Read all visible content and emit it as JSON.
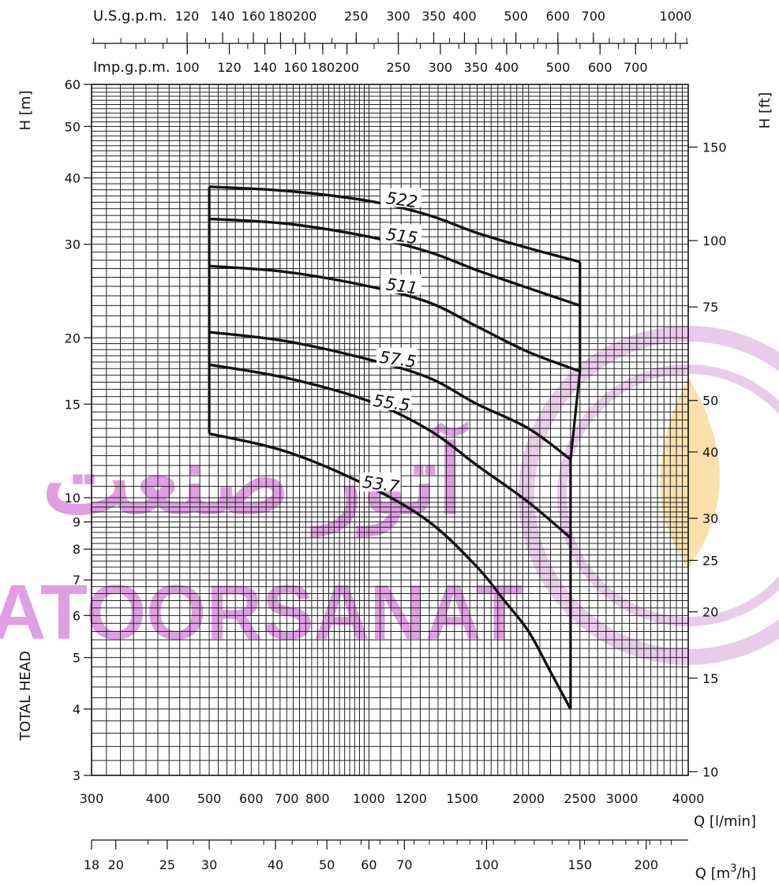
{
  "chart_data": {
    "type": "line",
    "x_scale": "log",
    "y_scale": "log",
    "xlim": [
      300,
      4000
    ],
    "ylim": [
      3,
      60
    ],
    "grid": true,
    "left_axis": {
      "label": "H [m]",
      "ticks": [
        {
          "value": 3,
          "label": "3"
        },
        {
          "value": 4,
          "label": "4"
        },
        {
          "value": 5,
          "label": "5"
        },
        {
          "value": 6,
          "label": "6"
        },
        {
          "value": 7,
          "label": "7"
        },
        {
          "value": 8,
          "label": "8"
        },
        {
          "value": 9,
          "label": "9"
        },
        {
          "value": 10,
          "label": "10"
        },
        {
          "value": 15,
          "label": "15"
        },
        {
          "value": 20,
          "label": "20"
        },
        {
          "value": 30,
          "label": "30"
        },
        {
          "value": 40,
          "label": "40"
        },
        {
          "value": 50,
          "label": "50"
        },
        {
          "value": 60,
          "label": "60"
        }
      ]
    },
    "vertical_label": "TOTAL HEAD",
    "right_axis": {
      "label": "H [ft]",
      "ticks": [
        {
          "value": 10,
          "label": "10"
        },
        {
          "value": 15,
          "label": "15"
        },
        {
          "value": 20,
          "label": "20"
        },
        {
          "value": 25,
          "label": "25"
        },
        {
          "value": 30,
          "label": "30"
        },
        {
          "value": 40,
          "label": "40"
        },
        {
          "value": 50,
          "label": "50"
        },
        {
          "value": 75,
          "label": "75"
        },
        {
          "value": 100,
          "label": "100"
        },
        {
          "value": 150,
          "label": "150"
        }
      ]
    },
    "bottom_axis": {
      "label": "Q [l/min]",
      "ticks": [
        {
          "value": 300,
          "label": "300"
        },
        {
          "value": 400,
          "label": "400"
        },
        {
          "value": 500,
          "label": "500"
        },
        {
          "value": 600,
          "label": "600"
        },
        {
          "value": 700,
          "label": "700"
        },
        {
          "value": 800,
          "label": "800"
        },
        {
          "value": 1000,
          "label": "1000"
        },
        {
          "value": 1200,
          "label": "1200"
        },
        {
          "value": 1500,
          "label": "1500"
        },
        {
          "value": 2000,
          "label": "2000"
        },
        {
          "value": 2500,
          "label": "2500"
        },
        {
          "value": 3000,
          "label": "3000"
        },
        {
          "value": 4000,
          "label": "4000"
        }
      ]
    },
    "m3h_axis": {
      "label_prefix": "Q [m",
      "label_sup": "3",
      "label_suffix": "/h]",
      "ticks": [
        {
          "value": 18,
          "label": "18"
        },
        {
          "value": 20,
          "label": "20"
        },
        {
          "value": 25,
          "label": "25"
        },
        {
          "value": 30,
          "label": "30"
        },
        {
          "value": 40,
          "label": "40"
        },
        {
          "value": 50,
          "label": "50"
        },
        {
          "value": 60,
          "label": "60"
        },
        {
          "value": 70,
          "label": "70"
        },
        {
          "value": 100,
          "label": "100"
        },
        {
          "value": 150,
          "label": "150"
        },
        {
          "value": 200,
          "label": "200"
        }
      ]
    },
    "usgpm_axis": {
      "label": "U.S.g.p.m.",
      "ticks": [
        {
          "value": 120,
          "label": "120"
        },
        {
          "value": 140,
          "label": "140"
        },
        {
          "value": 160,
          "label": "160"
        },
        {
          "value": 180,
          "label": "180"
        },
        {
          "value": 200,
          "label": "200"
        },
        {
          "value": 250,
          "label": "250"
        },
        {
          "value": 300,
          "label": "300"
        },
        {
          "value": 350,
          "label": "350"
        },
        {
          "value": 400,
          "label": "400"
        },
        {
          "value": 500,
          "label": "500"
        },
        {
          "value": 600,
          "label": "600"
        },
        {
          "value": 700,
          "label": "700"
        },
        {
          "value": 1000,
          "label": "1000"
        }
      ]
    },
    "impgpm_axis": {
      "label": "Imp.g.p.m.",
      "ticks": [
        {
          "value": 100,
          "label": "100"
        },
        {
          "value": 120,
          "label": "120"
        },
        {
          "value": 140,
          "label": "140"
        },
        {
          "value": 160,
          "label": "160"
        },
        {
          "value": 180,
          "label": "180"
        },
        {
          "value": 200,
          "label": "200"
        },
        {
          "value": 250,
          "label": "250"
        },
        {
          "value": 300,
          "label": "300"
        },
        {
          "value": 350,
          "label": "350"
        },
        {
          "value": 400,
          "label": "400"
        },
        {
          "value": 500,
          "label": "500"
        },
        {
          "value": 600,
          "label": "600"
        },
        {
          "value": 700,
          "label": "700"
        }
      ]
    },
    "series": [
      {
        "name": "522",
        "points": [
          [
            500,
            38.5
          ],
          [
            700,
            37.8
          ],
          [
            1000,
            36.2
          ],
          [
            1300,
            34.0
          ],
          [
            1600,
            31.5
          ],
          [
            2000,
            29.5
          ],
          [
            2500,
            27.8
          ]
        ]
      },
      {
        "name": "515",
        "points": [
          [
            500,
            33.5
          ],
          [
            700,
            32.8
          ],
          [
            1000,
            31.0
          ],
          [
            1300,
            29.0
          ],
          [
            1600,
            26.8
          ],
          [
            2000,
            24.8
          ],
          [
            2500,
            23.0
          ]
        ]
      },
      {
        "name": "511",
        "points": [
          [
            500,
            27.3
          ],
          [
            700,
            26.6
          ],
          [
            1000,
            25.0
          ],
          [
            1300,
            23.3
          ],
          [
            1600,
            21.0
          ],
          [
            2000,
            18.8
          ],
          [
            2500,
            17.3
          ]
        ]
      },
      {
        "name": "57.5",
        "points": [
          [
            500,
            20.5
          ],
          [
            700,
            19.7
          ],
          [
            1000,
            18.2
          ],
          [
            1300,
            16.8
          ],
          [
            1600,
            15.0
          ],
          [
            2000,
            13.5
          ],
          [
            2400,
            11.8
          ]
        ]
      },
      {
        "name": "55.5",
        "points": [
          [
            500,
            17.8
          ],
          [
            700,
            16.8
          ],
          [
            1000,
            15.2
          ],
          [
            1300,
            13.4
          ],
          [
            1600,
            11.5
          ],
          [
            2000,
            9.8
          ],
          [
            2400,
            8.4
          ]
        ]
      },
      {
        "name": "53.7",
        "points": [
          [
            500,
            13.2
          ],
          [
            700,
            12.2
          ],
          [
            1000,
            10.5
          ],
          [
            1300,
            9.0
          ],
          [
            1600,
            7.4
          ],
          [
            1800,
            6.4
          ],
          [
            2000,
            5.6
          ],
          [
            2200,
            4.7
          ],
          [
            2400,
            4.0
          ]
        ]
      }
    ],
    "envelope": [
      [
        500,
        38.5
      ],
      [
        500,
        13.2
      ]
    ],
    "right_boundary": [
      [
        2500,
        27.8
      ],
      [
        2500,
        17.3
      ],
      [
        2400,
        11.8
      ],
      [
        2400,
        4.0
      ]
    ]
  },
  "watermark": {
    "arabic_text": "آتور صنعت",
    "latin_text": "ATOORSANAT",
    "color": "#c050c8",
    "ring_color": "#d8a0dc",
    "flame_color": "#f5b942"
  },
  "colors": {
    "ink": "#111111",
    "grid": "#222222"
  }
}
